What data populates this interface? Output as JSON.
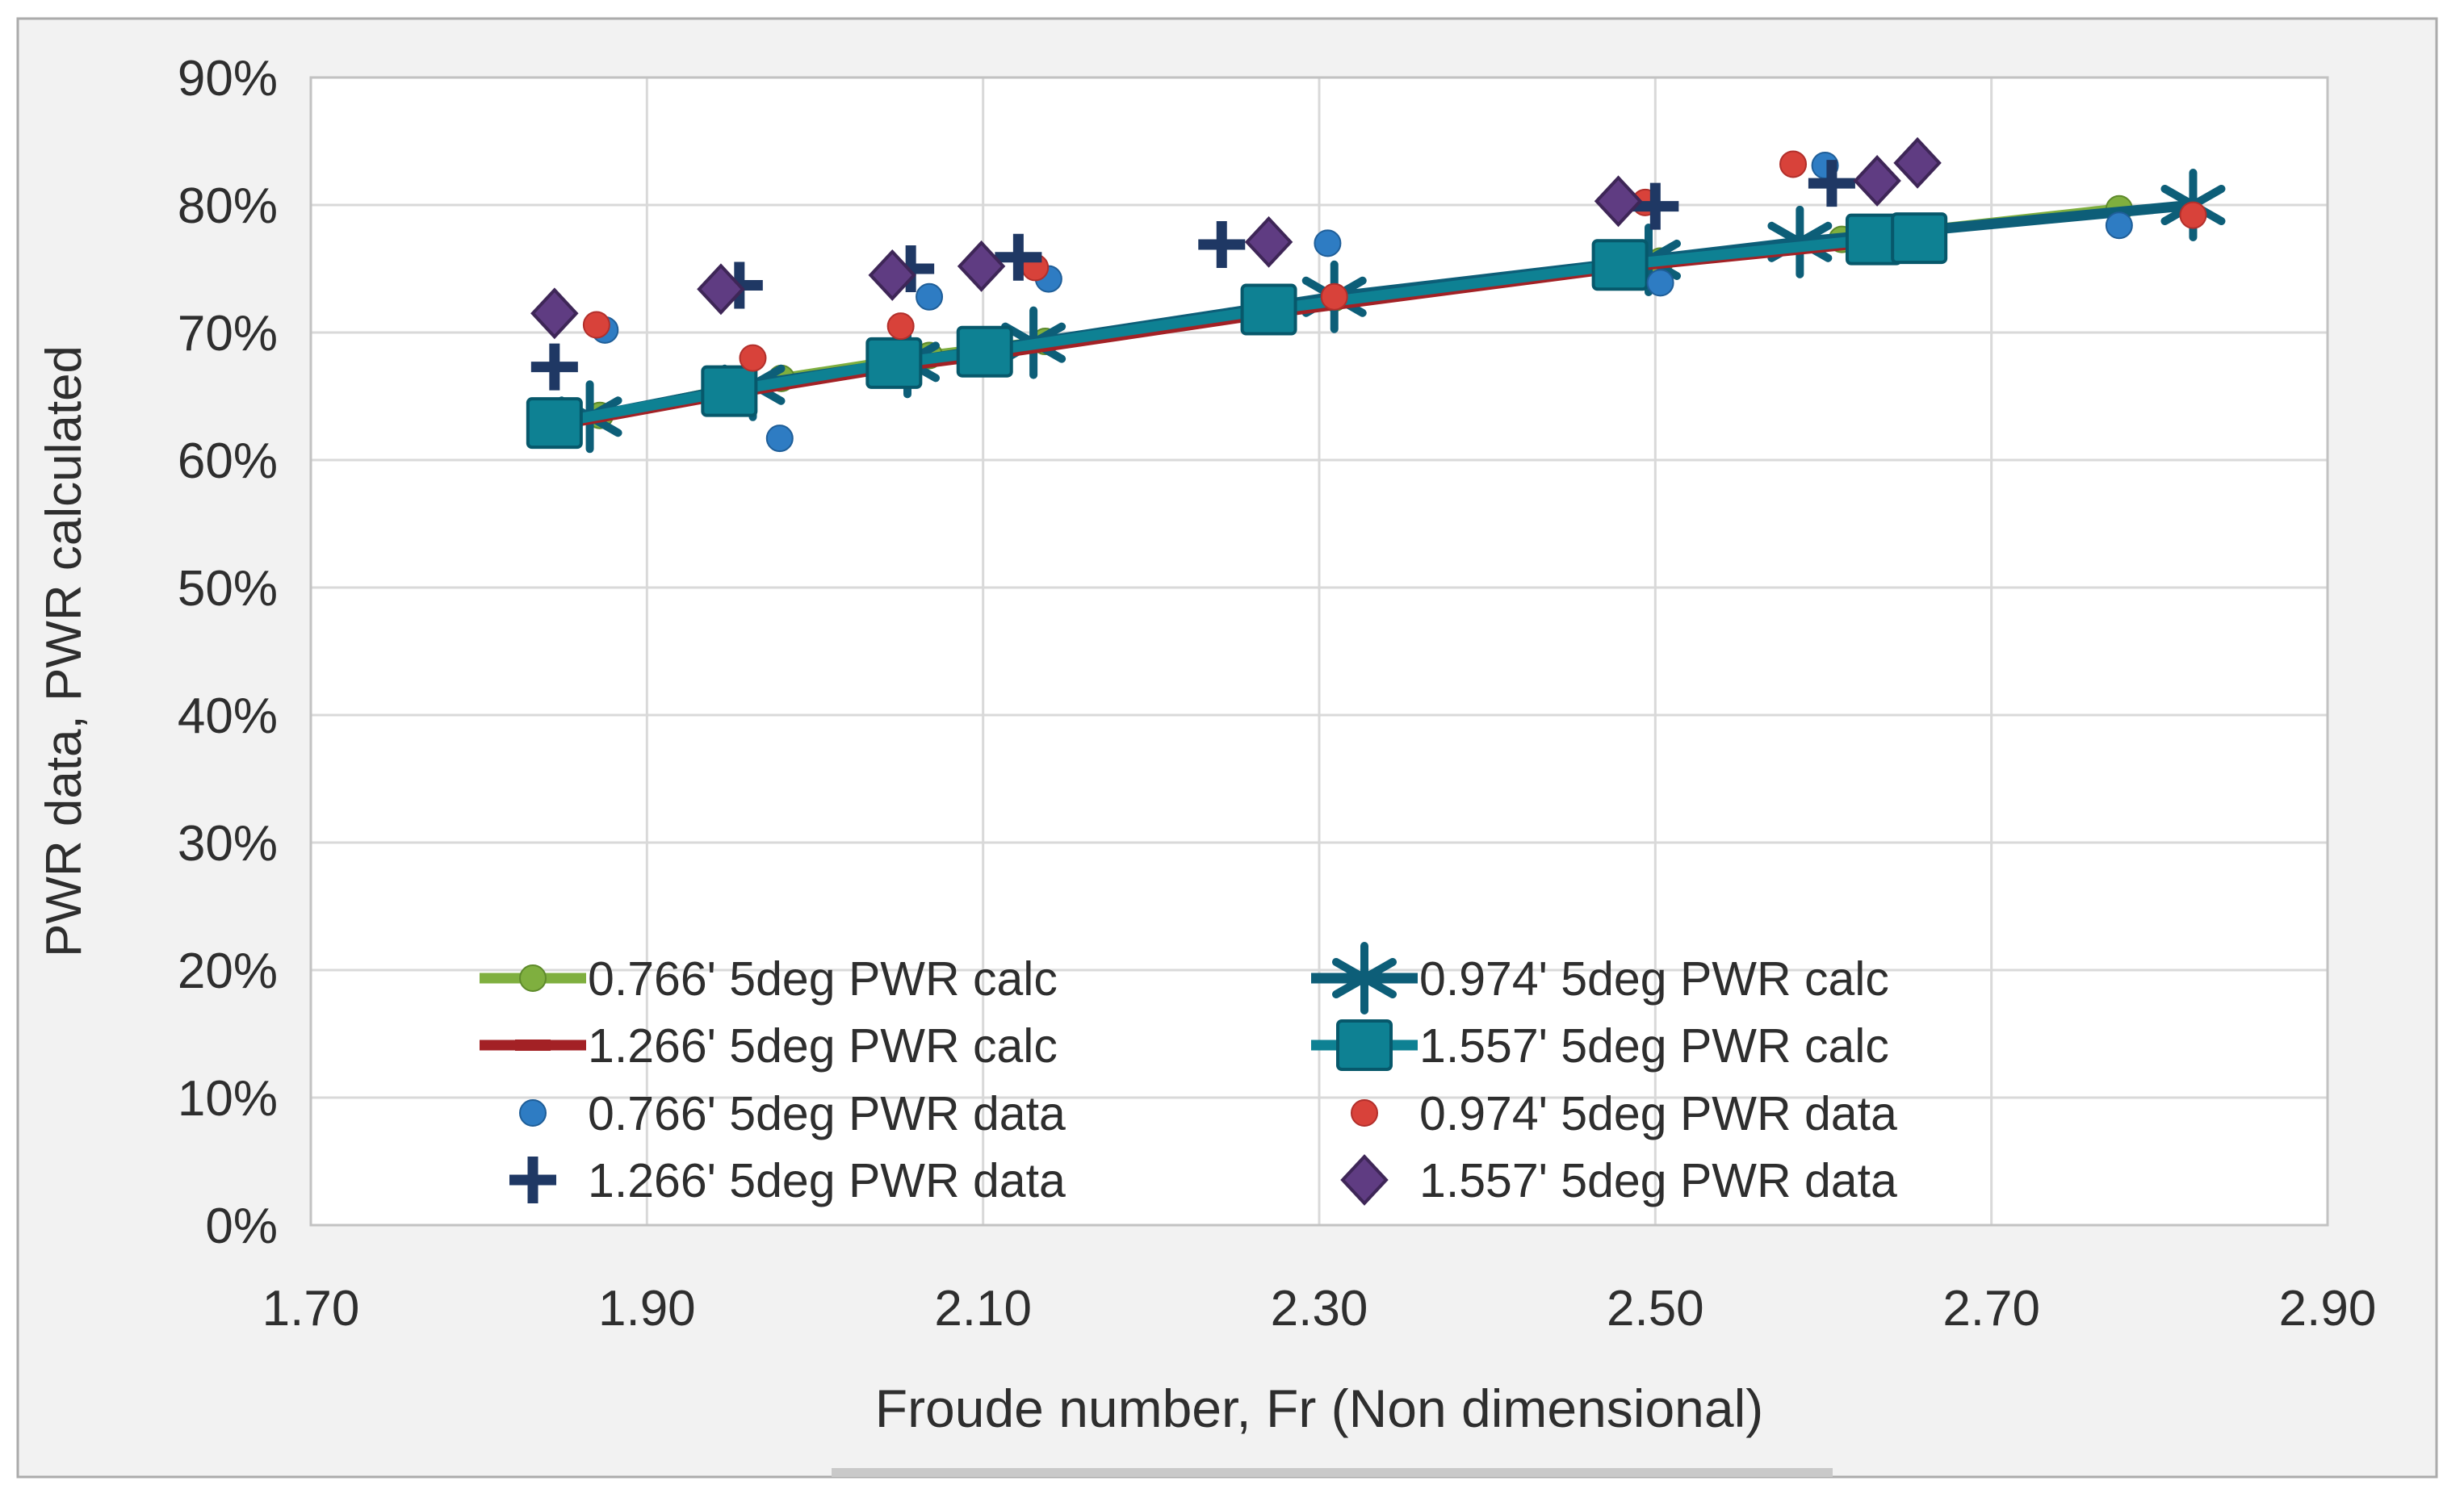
{
  "chart": {
    "frame": {
      "fill": "#F2F2F2",
      "border_color": "#ABABAB",
      "shadow_color": "#C9C9C9"
    },
    "plot": {
      "fill": "#FFFFFF",
      "border_color": "#C2C2C2",
      "gridline_color": "#D9D9D9"
    },
    "text_color": "#2E2E2E",
    "x_axis": {
      "title": "Froude number, Fr (Non dimensional)",
      "tick_labels": [
        "1.70",
        "1.90",
        "2.10",
        "2.30",
        "2.50",
        "2.70",
        "2.90"
      ],
      "tick_values": [
        1.7,
        1.9,
        2.1,
        2.3,
        2.5,
        2.7,
        2.9
      ],
      "min": 1.7,
      "max": 2.9
    },
    "y_axis": {
      "title": "PWR data, PWR calculated",
      "tick_labels": [
        "0%",
        "10%",
        "20%",
        "30%",
        "40%",
        "50%",
        "60%",
        "70%",
        "80%",
        "90%"
      ],
      "tick_values": [
        0,
        10,
        20,
        30,
        40,
        50,
        60,
        70,
        80,
        90
      ],
      "min": 0,
      "max": 90
    }
  },
  "chart_data": {
    "type": "line",
    "title": "",
    "xlabel": "Froude number, Fr (Non dimensional)",
    "ylabel": "PWR data, PWR calculated",
    "xlim": [
      1.7,
      2.9
    ],
    "ylim": [
      0,
      90
    ],
    "y_unit": "percent",
    "grid": true,
    "legend_position": "inside bottom-left, two columns",
    "series": [
      {
        "name": "0.766' 5deg  PWR calc",
        "kind": "line",
        "marker": "circle",
        "color": "#7FAF3F",
        "border": "#5E8A2B",
        "points": [
          [
            1.872,
            63.5
          ],
          [
            1.98,
            66.4
          ],
          [
            2.068,
            68.2
          ],
          [
            2.137,
            69.3
          ],
          [
            2.309,
            72.7
          ],
          [
            2.503,
            75.6
          ],
          [
            2.611,
            77.3
          ],
          [
            2.776,
            79.7
          ]
        ]
      },
      {
        "name": "0.974' 5deg PWR calc",
        "kind": "line",
        "marker": "asterisk",
        "color": "#0D5E78",
        "border": "#0D5E78",
        "points": [
          [
            1.866,
            63.4
          ],
          [
            1.963,
            65.9
          ],
          [
            2.055,
            67.7
          ],
          [
            2.13,
            69.2
          ],
          [
            2.309,
            72.8
          ],
          [
            2.496,
            75.7
          ],
          [
            2.586,
            77.1
          ],
          [
            2.82,
            80.0
          ]
        ]
      },
      {
        "name": "1.266' 5deg PWR calc",
        "kind": "line",
        "marker": "dash",
        "color": "#A32125",
        "border": "#7E181B",
        "points": [
          [
            1.845,
            62.7
          ],
          [
            1.949,
            65.2
          ],
          [
            2.047,
            67.3
          ],
          [
            2.101,
            68.2
          ],
          [
            2.27,
            71.5
          ],
          [
            2.479,
            75.1
          ],
          [
            2.63,
            77.1
          ],
          [
            2.657,
            77.2
          ]
        ]
      },
      {
        "name": "1.557' 5deg PWR calc",
        "kind": "line",
        "marker": "square",
        "color": "#0E8193",
        "border": "#07586B",
        "points": [
          [
            1.845,
            62.9
          ],
          [
            1.949,
            65.4
          ],
          [
            2.047,
            67.6
          ],
          [
            2.101,
            68.5
          ],
          [
            2.27,
            71.8
          ],
          [
            2.479,
            75.3
          ],
          [
            2.63,
            77.3
          ],
          [
            2.657,
            77.4
          ]
        ]
      },
      {
        "name": "0.766' 5deg PWR data",
        "kind": "scatter",
        "marker": "circle",
        "color": "#2E7CC3",
        "border": "#1F5E98",
        "points": [
          [
            1.875,
            70.2
          ],
          [
            1.979,
            61.7
          ],
          [
            2.068,
            72.8
          ],
          [
            2.139,
            74.2
          ],
          [
            2.305,
            77.0
          ],
          [
            2.503,
            73.9
          ],
          [
            2.601,
            83.1
          ],
          [
            2.776,
            78.4
          ]
        ]
      },
      {
        "name": "0.974' 5deg PWR data",
        "kind": "scatter",
        "marker": "circle",
        "color": "#D8423A",
        "border": "#B22F2B",
        "points": [
          [
            1.87,
            70.6
          ],
          [
            1.963,
            68.0
          ],
          [
            2.051,
            70.5
          ],
          [
            2.131,
            75.1
          ],
          [
            2.309,
            72.8
          ],
          [
            2.494,
            80.2
          ],
          [
            2.582,
            83.2
          ],
          [
            2.82,
            79.2
          ]
        ]
      },
      {
        "name": "1.266' 5deg PWR data",
        "kind": "scatter",
        "marker": "plus",
        "color": "#1F3864",
        "border": "#1F3864",
        "points": [
          [
            1.845,
            67.3
          ],
          [
            1.955,
            73.7
          ],
          [
            2.057,
            75.0
          ],
          [
            2.121,
            75.9
          ],
          [
            2.242,
            76.9
          ],
          [
            2.5,
            79.9
          ],
          [
            2.605,
            81.7
          ]
        ]
      },
      {
        "name": "1.557' 5deg PWR data",
        "kind": "scatter",
        "marker": "diamond",
        "color": "#5F3C82",
        "border": "#3E2657",
        "points": [
          [
            1.845,
            71.5
          ],
          [
            1.944,
            73.4
          ],
          [
            2.046,
            74.5
          ],
          [
            2.099,
            75.2
          ],
          [
            2.27,
            77.1
          ],
          [
            2.478,
            80.3
          ],
          [
            2.632,
            81.9
          ],
          [
            2.656,
            83.3
          ]
        ]
      }
    ],
    "legend_rows": [
      [
        0,
        1
      ],
      [
        2,
        3
      ],
      [
        4,
        5
      ],
      [
        6,
        7
      ]
    ]
  }
}
